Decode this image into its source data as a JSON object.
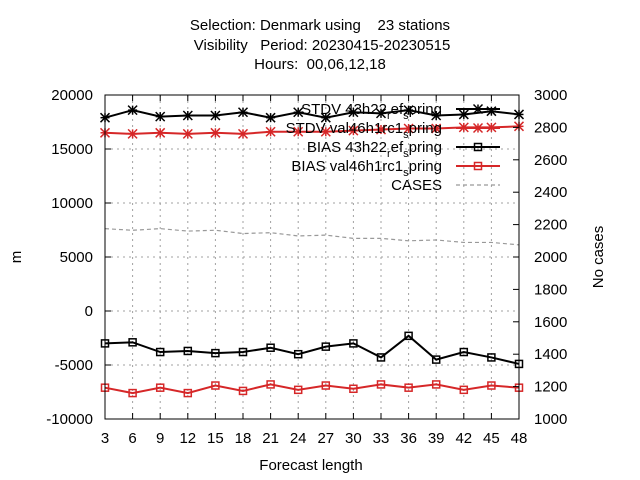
{
  "title": {
    "line1": "Selection: Denmark using    23 stations",
    "line2": " Visibility   Period: 20230415-20230515",
    "line3": "Hours:  00,06,12,18"
  },
  "chart_data": {
    "type": "line",
    "xlabel": "Forecast length",
    "ylabel": "m",
    "y2label": "No cases",
    "x": [
      3,
      6,
      9,
      12,
      15,
      18,
      21,
      24,
      27,
      30,
      33,
      36,
      39,
      42,
      45,
      48
    ],
    "ylim": [
      -10000,
      20000
    ],
    "y2lim": [
      1000,
      3000
    ],
    "yticks": [
      -10000,
      -5000,
      0,
      5000,
      10000,
      15000,
      20000
    ],
    "y2ticks": [
      1000,
      1200,
      1400,
      1600,
      1800,
      2000,
      2200,
      2400,
      2600,
      2800,
      3000
    ],
    "grid": true,
    "legend_position": "top-right",
    "series": [
      {
        "name": "STDV 43h22_ref_spring",
        "legend_text": "STDV 43h22",
        "legend_sub": "r",
        "legend_mid": "ef",
        "legend_sub2": "s",
        "legend_end": "pring",
        "axis": "y",
        "color": "#000000",
        "marker": "star",
        "values": [
          17900,
          18600,
          18000,
          18100,
          18100,
          18400,
          17900,
          18400,
          17900,
          18400,
          18300,
          18600,
          18100,
          18200,
          18500,
          18200
        ]
      },
      {
        "name": "STDV val46h1rc1_spring",
        "legend_text": "STDV val46h1rc1",
        "legend_sub": "s",
        "legend_end": "pring",
        "axis": "y",
        "color": "#d62728",
        "marker": "star",
        "values": [
          16500,
          16400,
          16500,
          16400,
          16500,
          16400,
          16600,
          16600,
          16600,
          16700,
          16800,
          16900,
          16900,
          17000,
          17000,
          17100
        ]
      },
      {
        "name": "BIAS 43h22_ref_spring",
        "legend_text": "BIAS 43h22",
        "legend_sub": "r",
        "legend_mid": "ef",
        "legend_sub2": "s",
        "legend_end": "pring",
        "axis": "y",
        "color": "#000000",
        "marker": "square",
        "values": [
          -3000,
          -2900,
          -3800,
          -3700,
          -3900,
          -3800,
          -3400,
          -4000,
          -3300,
          -3000,
          -4300,
          -2300,
          -4500,
          -3800,
          -4300,
          -4900
        ]
      },
      {
        "name": "BIAS val46h1rc1_spring",
        "legend_text": "BIAS val46h1rc1",
        "legend_sub": "s",
        "legend_end": "pring",
        "axis": "y",
        "color": "#d62728",
        "marker": "square",
        "values": [
          -7100,
          -7600,
          -7100,
          -7600,
          -6900,
          -7400,
          -6800,
          -7300,
          -6900,
          -7200,
          -6800,
          -7100,
          -6800,
          -7300,
          -6900,
          -7100
        ]
      },
      {
        "name": "CASES",
        "legend_text": "CASES",
        "axis": "y2",
        "color": "#999999",
        "marker": "none",
        "dashed": true,
        "values": [
          2175,
          2165,
          2175,
          2160,
          2165,
          2145,
          2150,
          2130,
          2135,
          2115,
          2115,
          2100,
          2105,
          2090,
          2090,
          2075
        ]
      }
    ]
  }
}
